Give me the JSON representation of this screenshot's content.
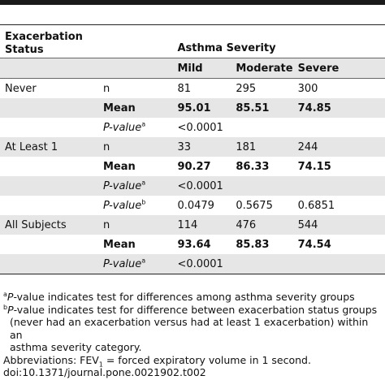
{
  "table": {
    "header": {
      "exacerbation_status": "Exacerbation Status",
      "asthma_severity": "Asthma Severity",
      "mild": "Mild",
      "moderate": "Moderate",
      "severe": "Severe"
    },
    "groups": [
      {
        "name": "Never",
        "rows": [
          {
            "stat": "n",
            "sup": "",
            "mild": "81",
            "moderate": "295",
            "severe": "300"
          },
          {
            "stat": "Mean",
            "sup": "",
            "mild": "95.01",
            "moderate": "85.51",
            "severe": "74.85"
          },
          {
            "stat": "P-value",
            "sup": "a",
            "mild": "<0.0001",
            "moderate": "",
            "severe": ""
          }
        ]
      },
      {
        "name": "At Least 1",
        "rows": [
          {
            "stat": "n",
            "sup": "",
            "mild": "33",
            "moderate": "181",
            "severe": "244"
          },
          {
            "stat": "Mean",
            "sup": "",
            "mild": "90.27",
            "moderate": "86.33",
            "severe": "74.15"
          },
          {
            "stat": "P-value",
            "sup": "a",
            "mild": "<0.0001",
            "moderate": "",
            "severe": ""
          },
          {
            "stat": "P-value",
            "sup": "b",
            "mild": "0.0479",
            "moderate": "0.5675",
            "severe": "0.6851"
          }
        ]
      },
      {
        "name": "All Subjects",
        "rows": [
          {
            "stat": "n",
            "sup": "",
            "mild": "114",
            "moderate": "476",
            "severe": "544"
          },
          {
            "stat": "Mean",
            "sup": "",
            "mild": "93.64",
            "moderate": "85.83",
            "severe": "74.54"
          },
          {
            "stat": "P-value",
            "sup": "a",
            "mild": "<0.0001",
            "moderate": "",
            "severe": ""
          }
        ]
      }
    ]
  },
  "footnotes": {
    "a_mark": "a",
    "a_label": "P",
    "a_text": "-value indicates test for differences among asthma severity groups",
    "b_mark": "b",
    "b_label": "P",
    "b_text_1": "-value indicates test for difference between exacerbation status groups",
    "b_text_2": "(never had an exacerbation versus had at least 1 exacerbation) within an",
    "b_text_3": "asthma severity category.",
    "abbrev_prefix": "Abbreviations: FEV",
    "abbrev_sub": "1",
    "abbrev_text": " = forced expiratory volume in 1 second.",
    "doi": "doi:10.1371/journal.pone.0021902.t002"
  }
}
